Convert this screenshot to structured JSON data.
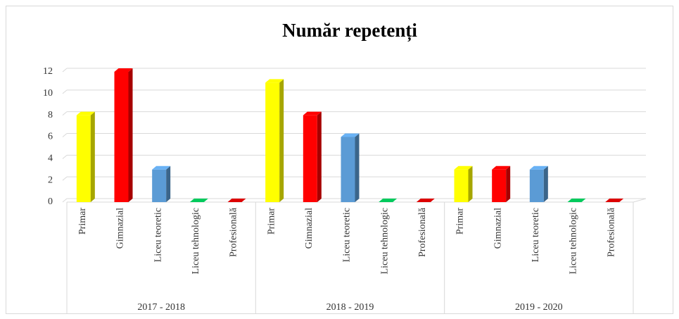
{
  "chart_data": {
    "type": "bar",
    "title": "Număr repetenți",
    "categories": [
      "Primar",
      "Gimnazial",
      "Liceu teoretic",
      "Liceu tehnologic",
      "Profesională"
    ],
    "colors": [
      "#ffff00",
      "#ff0000",
      "#5b9bd5",
      "#00b050",
      "#c00000"
    ],
    "groups": [
      {
        "name": "2017 - 2018",
        "values": [
          8,
          12,
          3,
          0,
          0
        ]
      },
      {
        "name": "2018 - 2019",
        "values": [
          11,
          8,
          6,
          0,
          0
        ]
      },
      {
        "name": "2019 - 2020",
        "values": [
          3,
          3,
          3,
          0,
          0
        ]
      }
    ],
    "ylim": [
      0,
      12
    ],
    "yticks": [
      0,
      2,
      4,
      6,
      8,
      10,
      12
    ],
    "grid": true
  }
}
